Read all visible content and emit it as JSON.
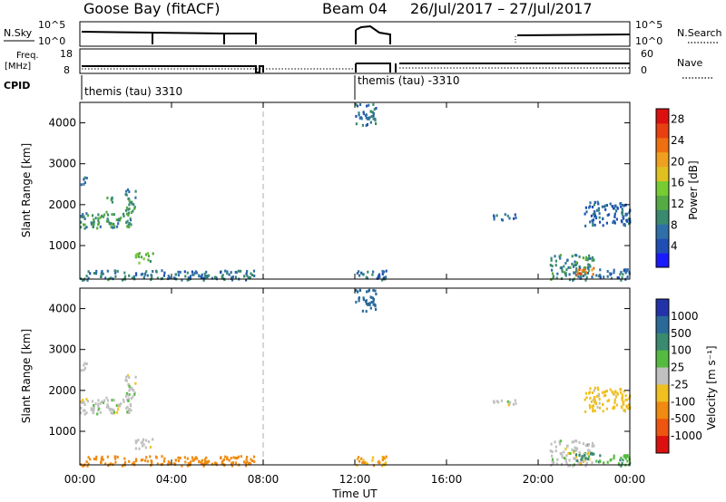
{
  "header": {
    "title_left": "Goose Bay (fitACF)",
    "title_mid": "Beam 04",
    "title_right": "26/Jul/2017 – 27/Jul/2017"
  },
  "strip_labels": {
    "nsky": "N.Sky",
    "nsky_tick_top": "10^5",
    "nsky_tick_bottom": "10^0",
    "nsearch": "N.Search",
    "freq_top": "Freq.",
    "freq_unit": "[MHz]",
    "freq_tick_top": "18",
    "freq_tick_bottom": "8",
    "nave_tick_top": "60",
    "nave_tick_bottom": "0",
    "nave": "Nave",
    "cpid": "CPID",
    "cpid_label_1": "themis (tau) 3310",
    "cpid_label_2": "themis (tau) -3310"
  },
  "axes": {
    "ylabel": "Slant Range [km]",
    "xlabel": "Time UT",
    "y_ticks": [
      "1000",
      "2000",
      "3000",
      "4000"
    ],
    "x_ticks": [
      "00:00",
      "04:00",
      "08:00",
      "12:00",
      "16:00",
      "20:00",
      "00:00"
    ]
  },
  "power_colorbar": {
    "label": "Power [dB]",
    "ticks": [
      "4",
      "8",
      "12",
      "16",
      "20",
      "24",
      "28"
    ],
    "colors": [
      "#1a1aff",
      "#1f4fb4",
      "#2f6fa8",
      "#3a8a70",
      "#55aa44",
      "#77cc33",
      "#e0c020",
      "#f0a020",
      "#ee7010",
      "#e84010",
      "#dd1010"
    ]
  },
  "velocity_colorbar": {
    "label": "Velocity [m s⁻¹]",
    "ticks": [
      "1000",
      "500",
      "100",
      "25",
      "-25",
      "-100",
      "-500",
      "-1000"
    ],
    "colors": [
      "#2233aa",
      "#2a6a9a",
      "#3a8a70",
      "#55bb40",
      "#c0c0c0",
      "#f0c020",
      "#f08a10",
      "#ee5510",
      "#dd1010"
    ]
  },
  "chart_data": [
    {
      "type": "heatmap",
      "title": "Power [dB]",
      "ylabel": "Slant Range [km]",
      "xlabel": "Time UT",
      "xlim": [
        0,
        24
      ],
      "ylim": [
        180,
        4500
      ],
      "clim": [
        0,
        30
      ],
      "blobs": [
        {
          "t0": 0.0,
          "t1": 2.3,
          "r0": 1450,
          "r1": 1850,
          "v": 10
        },
        {
          "t0": 1.9,
          "t1": 2.4,
          "r0": 1850,
          "r1": 2400,
          "v": 9
        },
        {
          "t0": 0.0,
          "t1": 0.3,
          "r0": 2500,
          "r1": 2750,
          "v": 6
        },
        {
          "t0": 1.0,
          "t1": 1.4,
          "r0": 2050,
          "r1": 2200,
          "v": 12
        },
        {
          "t0": 0.0,
          "t1": 7.6,
          "r0": 180,
          "r1": 420,
          "v": 8
        },
        {
          "t0": 2.4,
          "t1": 3.2,
          "r0": 600,
          "r1": 850,
          "v": 13
        },
        {
          "t0": 12.0,
          "t1": 12.9,
          "r0": 3950,
          "r1": 4500,
          "v": 8
        },
        {
          "t0": 12.0,
          "t1": 13.4,
          "r0": 180,
          "r1": 420,
          "v": 7
        },
        {
          "t0": 18.0,
          "t1": 19.0,
          "r0": 1650,
          "r1": 1800,
          "v": 7
        },
        {
          "t0": 20.5,
          "t1": 22.4,
          "r0": 180,
          "r1": 800,
          "v": 9
        },
        {
          "t0": 21.6,
          "t1": 22.4,
          "r0": 300,
          "r1": 500,
          "v": 22
        },
        {
          "t0": 22.0,
          "t1": 24.0,
          "r0": 1500,
          "r1": 2100,
          "v": 6
        },
        {
          "t0": 22.5,
          "t1": 24.0,
          "r0": 180,
          "r1": 450,
          "v": 6
        }
      ]
    },
    {
      "type": "heatmap",
      "title": "Velocity [m s⁻¹]",
      "ylabel": "Slant Range [km]",
      "xlabel": "Time UT",
      "xlim": [
        0,
        24
      ],
      "ylim": [
        180,
        4500
      ],
      "blobs": [
        {
          "t0": 0.0,
          "t1": 2.3,
          "r0": 1450,
          "r1": 1850,
          "v": 0
        },
        {
          "t0": 1.9,
          "t1": 2.4,
          "r0": 1850,
          "r1": 2400,
          "v": 0
        },
        {
          "t0": 0.0,
          "t1": 0.3,
          "r0": 2500,
          "r1": 2750,
          "v": 0
        },
        {
          "t0": 0.0,
          "t1": 7.6,
          "r0": 180,
          "r1": 420,
          "v": -200
        },
        {
          "t0": 2.4,
          "t1": 3.2,
          "r0": 600,
          "r1": 850,
          "v": 0
        },
        {
          "t0": 12.0,
          "t1": 12.9,
          "r0": 3950,
          "r1": 4500,
          "v": 600
        },
        {
          "t0": 12.0,
          "t1": 13.4,
          "r0": 180,
          "r1": 420,
          "v": -100
        },
        {
          "t0": 18.0,
          "t1": 19.0,
          "r0": 1650,
          "r1": 1800,
          "v": 0
        },
        {
          "t0": 20.5,
          "t1": 22.4,
          "r0": 180,
          "r1": 800,
          "v": 0
        },
        {
          "t0": 21.6,
          "t1": 22.4,
          "r0": 300,
          "r1": 500,
          "v": 150
        },
        {
          "t0": 22.0,
          "t1": 24.0,
          "r0": 1500,
          "r1": 2100,
          "v": -50
        },
        {
          "t0": 22.5,
          "t1": 24.0,
          "r0": 180,
          "r1": 450,
          "v": 80
        }
      ]
    }
  ]
}
